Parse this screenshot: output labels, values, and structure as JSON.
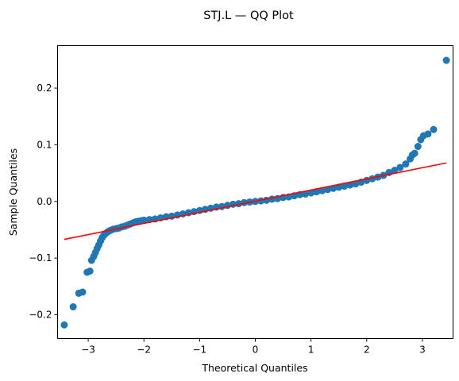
{
  "chart_data": {
    "type": "scatter",
    "title": "STJ.L — QQ Plot",
    "xlabel": "Theoretical Quantiles",
    "ylabel": "Sample Quantiles",
    "xlim": [
      -3.55,
      3.55
    ],
    "ylim": [
      -0.242,
      0.275
    ],
    "xticks": [
      -3,
      -2,
      -1,
      0,
      1,
      2,
      3
    ],
    "xtick_labels": [
      "−3",
      "−2",
      "−1",
      "0",
      "1",
      "2",
      "3"
    ],
    "yticks": [
      -0.2,
      -0.1,
      0.0,
      0.1,
      0.2
    ],
    "ytick_labels": [
      "−0.2",
      "−0.1",
      "0.0",
      "0.1",
      "0.2"
    ],
    "grid": false,
    "points": [
      [
        -3.43,
        -0.218
      ],
      [
        -3.27,
        -0.186
      ],
      [
        -3.17,
        -0.162
      ],
      [
        -3.1,
        -0.16
      ],
      [
        -3.02,
        -0.125
      ],
      [
        -2.97,
        -0.123
      ],
      [
        -2.94,
        -0.104
      ],
      [
        -2.9,
        -0.097
      ],
      [
        -2.87,
        -0.09
      ],
      [
        -2.84,
        -0.083
      ],
      [
        -2.81,
        -0.077
      ],
      [
        -2.78,
        -0.07
      ],
      [
        -2.75,
        -0.064
      ],
      [
        -2.72,
        -0.06
      ],
      [
        -2.68,
        -0.056
      ],
      [
        -2.64,
        -0.053
      ],
      [
        -2.6,
        -0.051
      ],
      [
        -2.55,
        -0.049
      ],
      [
        -2.5,
        -0.048
      ],
      [
        -2.45,
        -0.047
      ],
      [
        -2.4,
        -0.045
      ],
      [
        -2.35,
        -0.044
      ],
      [
        -2.3,
        -0.042
      ],
      [
        -2.25,
        -0.04
      ],
      [
        -2.2,
        -0.038
      ],
      [
        -2.15,
        -0.036
      ],
      [
        -2.1,
        -0.035
      ],
      [
        -2.05,
        -0.034
      ],
      [
        -2.0,
        -0.033
      ],
      [
        -1.9,
        -0.032
      ],
      [
        -1.8,
        -0.031
      ],
      [
        -1.7,
        -0.029
      ],
      [
        -1.6,
        -0.027
      ],
      [
        -1.5,
        -0.026
      ],
      [
        -1.4,
        -0.024
      ],
      [
        -1.3,
        -0.022
      ],
      [
        -1.2,
        -0.02
      ],
      [
        -1.1,
        -0.018
      ],
      [
        -1.0,
        -0.016
      ],
      [
        -0.9,
        -0.014
      ],
      [
        -0.8,
        -0.012
      ],
      [
        -0.7,
        -0.01
      ],
      [
        -0.6,
        -0.009
      ],
      [
        -0.5,
        -0.007
      ],
      [
        -0.4,
        -0.005
      ],
      [
        -0.3,
        -0.004
      ],
      [
        -0.2,
        -0.002
      ],
      [
        -0.1,
        -0.001
      ],
      [
        0.0,
        0.0
      ],
      [
        0.1,
        0.001
      ],
      [
        0.2,
        0.002
      ],
      [
        0.3,
        0.004
      ],
      [
        0.4,
        0.005
      ],
      [
        0.5,
        0.007
      ],
      [
        0.6,
        0.008
      ],
      [
        0.7,
        0.01
      ],
      [
        0.8,
        0.012
      ],
      [
        0.9,
        0.013
      ],
      [
        1.0,
        0.015
      ],
      [
        1.1,
        0.017
      ],
      [
        1.2,
        0.019
      ],
      [
        1.3,
        0.021
      ],
      [
        1.4,
        0.023
      ],
      [
        1.5,
        0.025
      ],
      [
        1.6,
        0.027
      ],
      [
        1.7,
        0.029
      ],
      [
        1.8,
        0.031
      ],
      [
        1.9,
        0.034
      ],
      [
        2.0,
        0.037
      ],
      [
        2.1,
        0.04
      ],
      [
        2.2,
        0.043
      ],
      [
        2.3,
        0.046
      ],
      [
        2.4,
        0.051
      ],
      [
        2.5,
        0.055
      ],
      [
        2.6,
        0.06
      ],
      [
        2.7,
        0.066
      ],
      [
        2.78,
        0.075
      ],
      [
        2.82,
        0.082
      ],
      [
        2.86,
        0.085
      ],
      [
        2.92,
        0.097
      ],
      [
        2.97,
        0.109
      ],
      [
        3.02,
        0.116
      ],
      [
        3.1,
        0.119
      ],
      [
        3.2,
        0.127
      ],
      [
        3.43,
        0.249
      ]
    ],
    "fit_line": {
      "x": [
        -3.43,
        3.43
      ],
      "y": [
        -0.067,
        0.068
      ]
    },
    "colors": {
      "points": "#1f77b4",
      "line": "#ff0000",
      "axes": "#000000"
    }
  }
}
